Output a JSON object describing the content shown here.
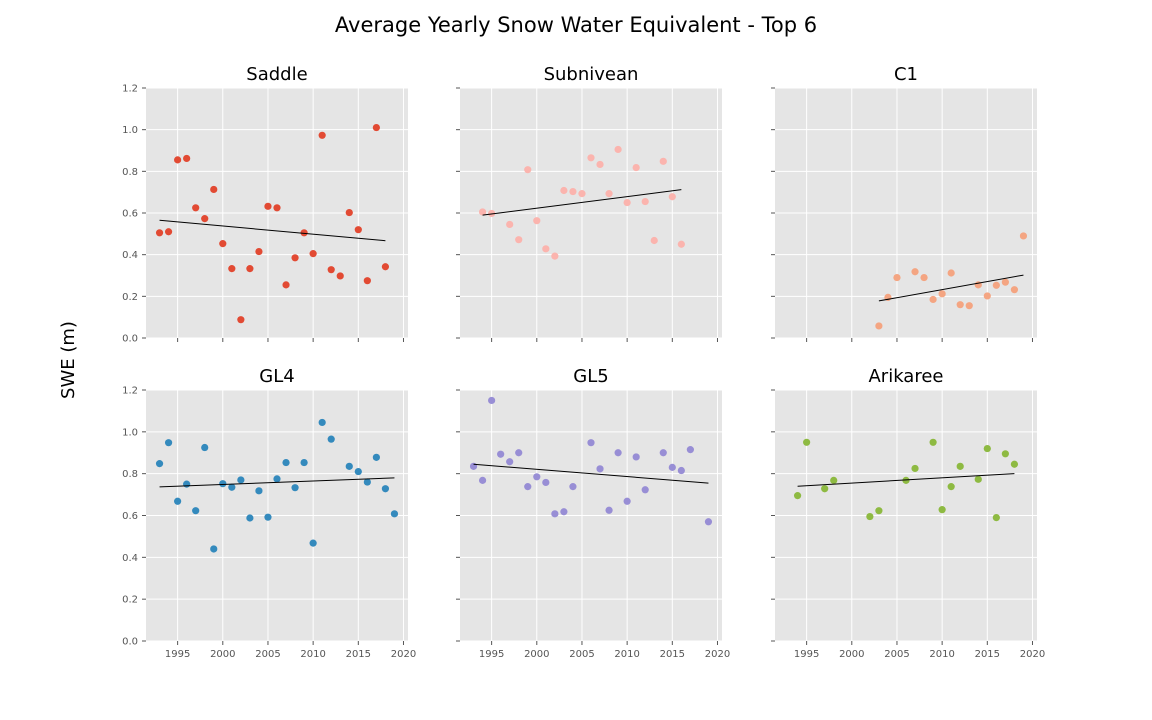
{
  "figure": {
    "title": "Average Yearly Snow Water Equivalent - Top 6",
    "ylabel": "SWE (m)"
  },
  "chart_data": [
    {
      "type": "scatter",
      "title": "Saddle",
      "color": "#e24a33",
      "xlim": [
        1991.5,
        2020.5
      ],
      "ylim": [
        0,
        1.2
      ],
      "xticks": [
        1995,
        2000,
        2005,
        2010,
        2015,
        2020
      ],
      "yticks": [
        0.0,
        0.2,
        0.4,
        0.6,
        0.8,
        1.0,
        1.2
      ],
      "grid": true,
      "trend": {
        "x": [
          1993,
          2018
        ],
        "y": [
          0.565,
          0.467
        ]
      },
      "points": [
        [
          1993,
          0.505
        ],
        [
          1994,
          0.51
        ],
        [
          1995,
          0.855
        ],
        [
          1996,
          0.862
        ],
        [
          1997,
          0.625
        ],
        [
          1998,
          0.573
        ],
        [
          1999,
          0.713
        ],
        [
          2000,
          0.453
        ],
        [
          2001,
          0.333
        ],
        [
          2002,
          0.088
        ],
        [
          2003,
          0.333
        ],
        [
          2004,
          0.415
        ],
        [
          2005,
          0.632
        ],
        [
          2006,
          0.625
        ],
        [
          2007,
          0.255
        ],
        [
          2008,
          0.385
        ],
        [
          2009,
          0.505
        ],
        [
          2010,
          0.405
        ],
        [
          2011,
          0.973
        ],
        [
          2012,
          0.328
        ],
        [
          2013,
          0.298
        ],
        [
          2014,
          0.602
        ],
        [
          2015,
          0.52
        ],
        [
          2016,
          0.275
        ],
        [
          2017,
          1.01
        ],
        [
          2018,
          0.342
        ]
      ]
    },
    {
      "type": "scatter",
      "title": "Subnivean",
      "color": "#fbb4ae",
      "xlim": [
        1991.5,
        2020.5
      ],
      "ylim": [
        0,
        1.2
      ],
      "xticks": [
        1995,
        2000,
        2005,
        2010,
        2015,
        2020
      ],
      "yticks": [
        0.0,
        0.2,
        0.4,
        0.6,
        0.8,
        1.0,
        1.2
      ],
      "grid": true,
      "trend": {
        "x": [
          1994,
          2016
        ],
        "y": [
          0.59,
          0.712
        ]
      },
      "points": [
        [
          1994,
          0.605
        ],
        [
          1995,
          0.598
        ],
        [
          1997,
          0.545
        ],
        [
          1998,
          0.472
        ],
        [
          1999,
          0.808
        ],
        [
          2000,
          0.563
        ],
        [
          2001,
          0.428
        ],
        [
          2002,
          0.393
        ],
        [
          2003,
          0.708
        ],
        [
          2004,
          0.703
        ],
        [
          2005,
          0.693
        ],
        [
          2006,
          0.865
        ],
        [
          2007,
          0.833
        ],
        [
          2008,
          0.693
        ],
        [
          2009,
          0.905
        ],
        [
          2010,
          0.65
        ],
        [
          2011,
          0.818
        ],
        [
          2012,
          0.655
        ],
        [
          2013,
          0.468
        ],
        [
          2014,
          0.848
        ],
        [
          2015,
          0.678
        ],
        [
          2016,
          0.45
        ]
      ]
    },
    {
      "type": "scatter",
      "title": "C1",
      "color": "#f4a582",
      "xlim": [
        1991.5,
        2020.5
      ],
      "ylim": [
        0,
        1.2
      ],
      "xticks": [
        1995,
        2000,
        2005,
        2010,
        2015,
        2020
      ],
      "yticks": [
        0.0,
        0.2,
        0.4,
        0.6,
        0.8,
        1.0,
        1.2
      ],
      "grid": true,
      "trend": {
        "x": [
          2003,
          2019
        ],
        "y": [
          0.178,
          0.302
        ]
      },
      "points": [
        [
          2003,
          0.058
        ],
        [
          2004,
          0.195
        ],
        [
          2005,
          0.29
        ],
        [
          2007,
          0.318
        ],
        [
          2008,
          0.29
        ],
        [
          2009,
          0.185
        ],
        [
          2010,
          0.212
        ],
        [
          2011,
          0.312
        ],
        [
          2012,
          0.16
        ],
        [
          2013,
          0.155
        ],
        [
          2014,
          0.255
        ],
        [
          2015,
          0.202
        ],
        [
          2016,
          0.253
        ],
        [
          2017,
          0.268
        ],
        [
          2018,
          0.232
        ],
        [
          2019,
          0.49
        ]
      ]
    },
    {
      "type": "scatter",
      "title": "GL4",
      "color": "#348abd",
      "xlim": [
        1991.5,
        2020.5
      ],
      "ylim": [
        0,
        1.2
      ],
      "xticks": [
        1995,
        2000,
        2005,
        2010,
        2015,
        2020
      ],
      "yticks": [
        0.0,
        0.2,
        0.4,
        0.6,
        0.8,
        1.0,
        1.2
      ],
      "grid": true,
      "trend": {
        "x": [
          1993,
          2019
        ],
        "y": [
          0.737,
          0.78
        ]
      },
      "points": [
        [
          1993,
          0.848
        ],
        [
          1994,
          0.948
        ],
        [
          1995,
          0.668
        ],
        [
          1996,
          0.75
        ],
        [
          1997,
          0.623
        ],
        [
          1998,
          0.925
        ],
        [
          1999,
          0.44
        ],
        [
          2000,
          0.752
        ],
        [
          2001,
          0.735
        ],
        [
          2002,
          0.77
        ],
        [
          2003,
          0.588
        ],
        [
          2004,
          0.718
        ],
        [
          2005,
          0.592
        ],
        [
          2006,
          0.775
        ],
        [
          2007,
          0.853
        ],
        [
          2008,
          0.733
        ],
        [
          2009,
          0.853
        ],
        [
          2010,
          0.468
        ],
        [
          2011,
          1.045
        ],
        [
          2012,
          0.965
        ],
        [
          2014,
          0.835
        ],
        [
          2015,
          0.81
        ],
        [
          2016,
          0.76
        ],
        [
          2017,
          0.878
        ],
        [
          2018,
          0.728
        ],
        [
          2019,
          0.608
        ]
      ]
    },
    {
      "type": "scatter",
      "title": "GL5",
      "color": "#988ed5",
      "xlim": [
        1991.5,
        2020.5
      ],
      "ylim": [
        0,
        1.2
      ],
      "xticks": [
        1995,
        2000,
        2005,
        2010,
        2015,
        2020
      ],
      "yticks": [
        0.0,
        0.2,
        0.4,
        0.6,
        0.8,
        1.0,
        1.2
      ],
      "grid": true,
      "trend": {
        "x": [
          1993,
          2019
        ],
        "y": [
          0.845,
          0.755
        ]
      },
      "points": [
        [
          1993,
          0.835
        ],
        [
          1994,
          0.768
        ],
        [
          1995,
          1.15
        ],
        [
          1996,
          0.893
        ],
        [
          1997,
          0.857
        ],
        [
          1998,
          0.9
        ],
        [
          1999,
          0.738
        ],
        [
          2000,
          0.785
        ],
        [
          2001,
          0.758
        ],
        [
          2002,
          0.608
        ],
        [
          2003,
          0.618
        ],
        [
          2004,
          0.738
        ],
        [
          2006,
          0.948
        ],
        [
          2007,
          0.823
        ],
        [
          2008,
          0.625
        ],
        [
          2009,
          0.9
        ],
        [
          2010,
          0.668
        ],
        [
          2011,
          0.88
        ],
        [
          2012,
          0.723
        ],
        [
          2014,
          0.9
        ],
        [
          2015,
          0.83
        ],
        [
          2016,
          0.815
        ],
        [
          2017,
          0.915
        ],
        [
          2019,
          0.57
        ]
      ]
    },
    {
      "type": "scatter",
      "title": "Arikaree",
      "color": "#8eba42",
      "xlim": [
        1991.5,
        2020.5
      ],
      "ylim": [
        0,
        1.2
      ],
      "xticks": [
        1995,
        2000,
        2005,
        2010,
        2015,
        2020
      ],
      "yticks": [
        0.0,
        0.2,
        0.4,
        0.6,
        0.8,
        1.0,
        1.2
      ],
      "grid": true,
      "trend": {
        "x": [
          1994,
          2018
        ],
        "y": [
          0.74,
          0.8
        ]
      },
      "points": [
        [
          1994,
          0.695
        ],
        [
          1995,
          0.95
        ],
        [
          1997,
          0.728
        ],
        [
          1998,
          0.768
        ],
        [
          2002,
          0.595
        ],
        [
          2003,
          0.623
        ],
        [
          2006,
          0.768
        ],
        [
          2007,
          0.825
        ],
        [
          2009,
          0.95
        ],
        [
          2010,
          0.628
        ],
        [
          2011,
          0.738
        ],
        [
          2012,
          0.835
        ],
        [
          2014,
          0.773
        ],
        [
          2015,
          0.92
        ],
        [
          2016,
          0.59
        ],
        [
          2017,
          0.895
        ],
        [
          2018,
          0.845
        ]
      ]
    }
  ]
}
